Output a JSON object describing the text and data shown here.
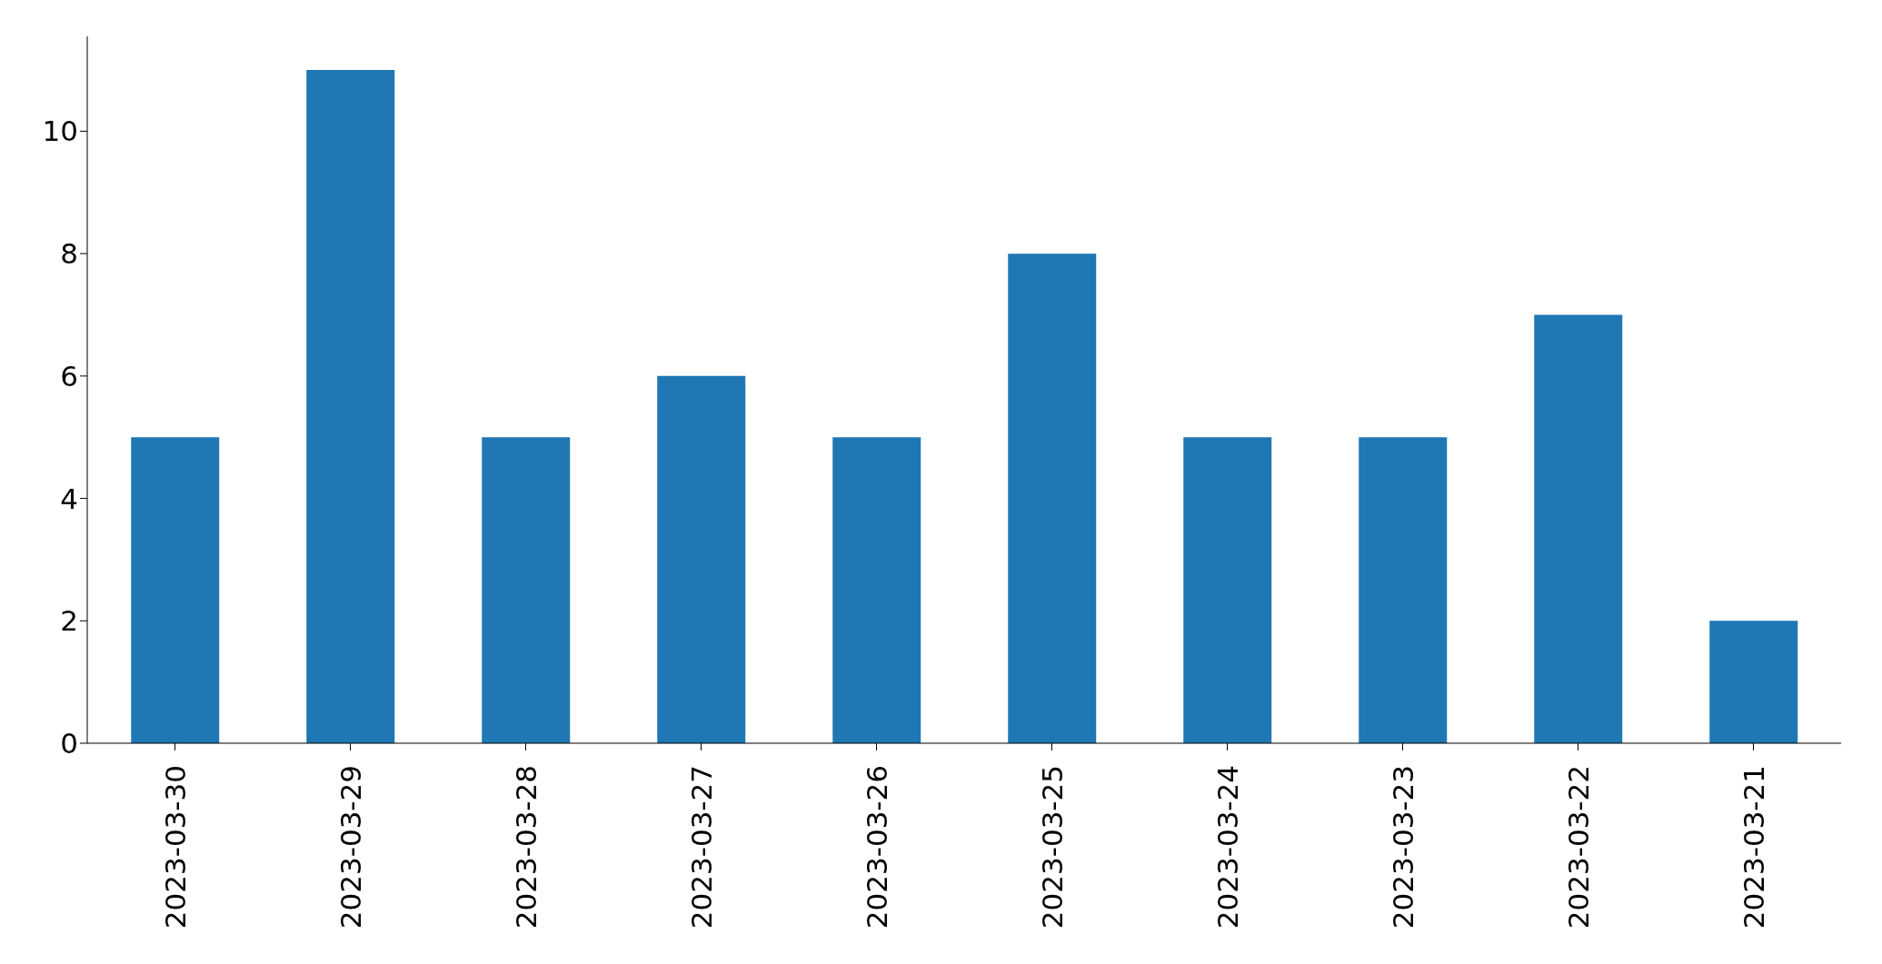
{
  "chart_data": {
    "type": "bar",
    "categories": [
      "2023-03-30",
      "2023-03-29",
      "2023-03-28",
      "2023-03-27",
      "2023-03-26",
      "2023-03-25",
      "2023-03-24",
      "2023-03-23",
      "2023-03-22",
      "2023-03-21"
    ],
    "values": [
      5,
      11,
      5,
      6,
      5,
      8,
      5,
      5,
      7,
      2
    ],
    "color": "#1f77b4",
    "ylim": [
      0,
      11.55
    ],
    "yticks": [
      0,
      2,
      4,
      6,
      8,
      10
    ],
    "grid": false,
    "legend": false
  }
}
